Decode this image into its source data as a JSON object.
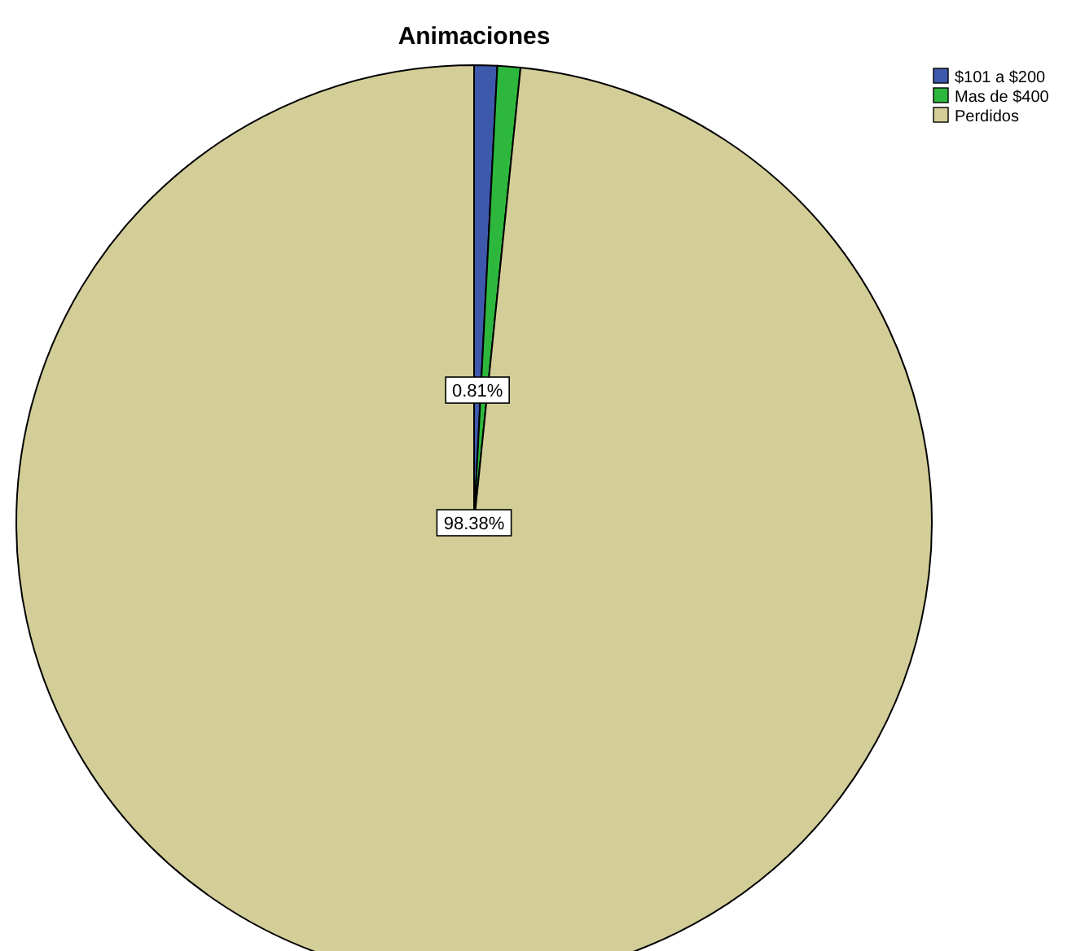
{
  "chart_data": {
    "type": "pie",
    "title": "Animaciones",
    "categories": [
      "$101 a $200",
      "Mas de $400",
      "Perdidos"
    ],
    "values": [
      0.81,
      0.81,
      98.38
    ],
    "colors": [
      "#3e58ac",
      "#2db83d",
      "#d3ce97"
    ],
    "value_labels": [
      "0.81%",
      null,
      "98.38%"
    ],
    "legend": "top right"
  }
}
